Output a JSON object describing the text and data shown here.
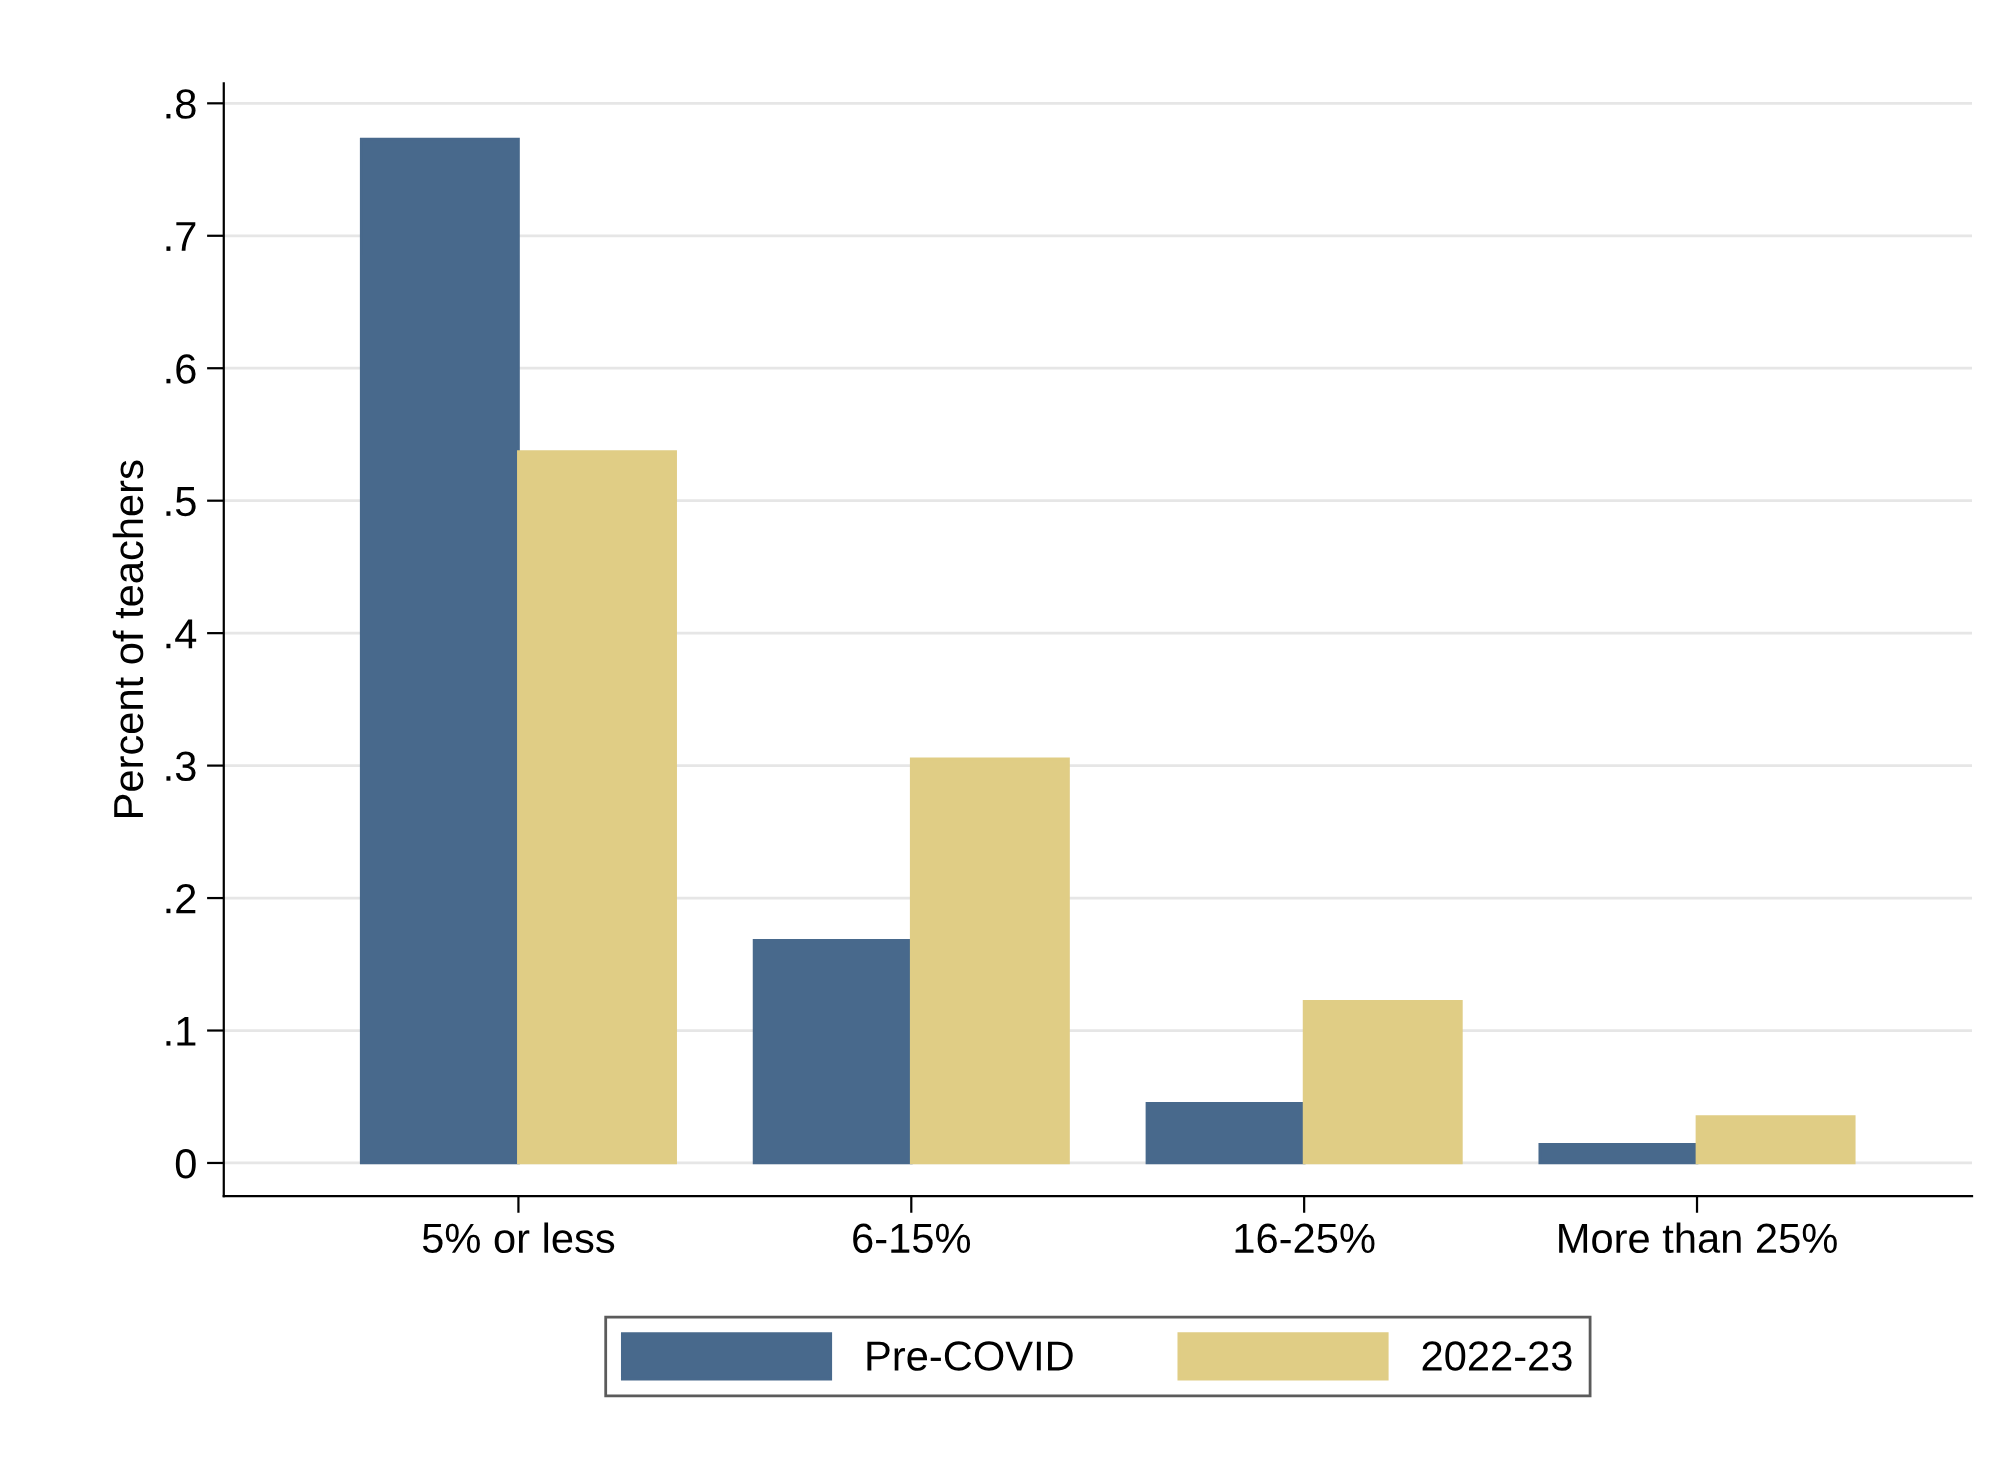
{
  "chart_data": {
    "type": "bar",
    "ylabel": "Percent of teachers",
    "categories": [
      "5% or less",
      "6-15%",
      "16-25%",
      "More than 25%"
    ],
    "series": [
      {
        "name": "Pre-COVID",
        "color": "#48698c",
        "values": [
          0.773,
          0.168,
          0.045,
          0.014
        ]
      },
      {
        "name": "2022-23",
        "color": "#e0cd85",
        "values": [
          0.537,
          0.305,
          0.122,
          0.035
        ]
      }
    ],
    "ylim": [
      -0.025,
      0.815
    ],
    "yticks": [
      {
        "value": 0,
        "label": "0"
      },
      {
        "value": 0.1,
        "label": ".1"
      },
      {
        "value": 0.2,
        "label": ".2"
      },
      {
        "value": 0.3,
        "label": ".3"
      },
      {
        "value": 0.4,
        "label": ".4"
      },
      {
        "value": 0.5,
        "label": ".5"
      },
      {
        "value": 0.6,
        "label": ".6"
      },
      {
        "value": 0.7,
        "label": ".7"
      },
      {
        "value": 0.8,
        "label": ".8"
      }
    ],
    "grid": "y",
    "legend": "bottom"
  }
}
